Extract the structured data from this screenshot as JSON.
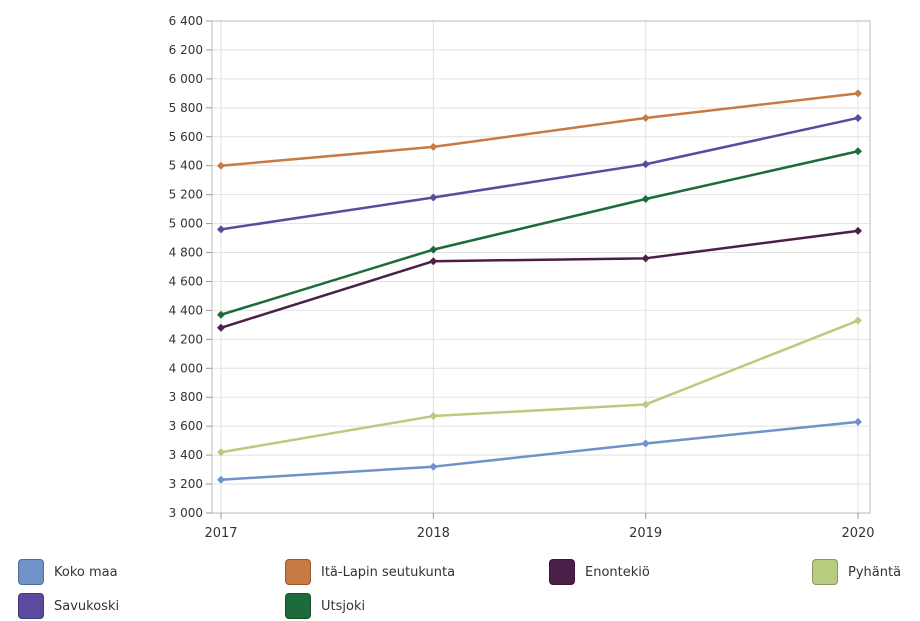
{
  "chart_data": {
    "type": "line",
    "title": "",
    "xlabel": "",
    "ylabel": "",
    "x": [
      "2017",
      "2018",
      "2019",
      "2020"
    ],
    "ylim": [
      3000,
      6400
    ],
    "ytick_step": 200,
    "ytick_labels": [
      "3 000",
      "3 200",
      "3 400",
      "3 600",
      "3 800",
      "4 000",
      "4 200",
      "4 400",
      "4 600",
      "4 800",
      "5 000",
      "5 200",
      "5 400",
      "5 600",
      "5 800",
      "6 000",
      "6 200",
      "6 400"
    ],
    "grid": true,
    "legend_position": "bottom",
    "series": [
      {
        "name": "Koko maa",
        "color": "#6f93c9",
        "values": [
          3230,
          3320,
          3480,
          3630
        ]
      },
      {
        "name": "Itä-Lapin seutukunta",
        "color": "#c87a43",
        "values": [
          5400,
          5530,
          5730,
          5900
        ]
      },
      {
        "name": "Enontekiö",
        "color": "#4b1f48",
        "values": [
          4280,
          4740,
          4760,
          4950
        ]
      },
      {
        "name": "Pyhäntä",
        "color": "#b8cc7f",
        "values": [
          3420,
          3670,
          3750,
          4330
        ]
      },
      {
        "name": "Savukoski",
        "color": "#5c4a9e",
        "values": [
          4960,
          5180,
          5410,
          5730
        ]
      },
      {
        "name": "Utsjoki",
        "color": "#1d6b3a",
        "values": [
          4370,
          4820,
          5170,
          5500
        ]
      }
    ]
  }
}
